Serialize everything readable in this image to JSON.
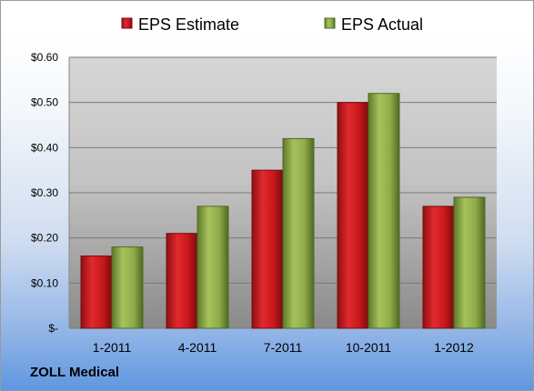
{
  "footer": {
    "company": "ZOLL Medical"
  },
  "colors": {
    "estimate": "#c8181c",
    "actual": "#8fac4a"
  },
  "chart_data": {
    "type": "bar",
    "categories": [
      "1-2011",
      "4-2011",
      "7-2011",
      "10-2011",
      "1-2012"
    ],
    "series": [
      {
        "name": "EPS Estimate",
        "values": [
          0.16,
          0.21,
          0.35,
          0.5,
          0.27
        ]
      },
      {
        "name": "EPS Actual",
        "values": [
          0.18,
          0.27,
          0.42,
          0.52,
          0.29
        ]
      }
    ],
    "y_ticks": [
      "$-",
      "$0.10",
      "$0.20",
      "$0.30",
      "$0.40",
      "$0.50",
      "$0.60"
    ],
    "ylim": [
      0,
      0.6
    ],
    "grid": true,
    "legend_position": "top"
  }
}
